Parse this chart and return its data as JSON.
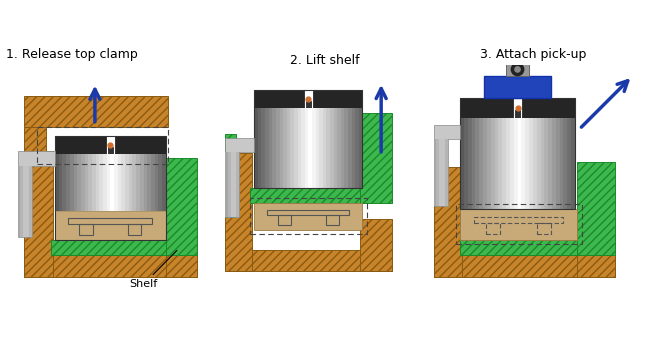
{
  "title1": "1. Release top clamp",
  "title2": "2. Lift shelf",
  "title3": "3. Attach pick-up",
  "shelf_label": "Shelf",
  "bg_color": "#ffffff",
  "wood_color": "#c8842a",
  "wood_edge": "#8a5a10",
  "green_color": "#3db84e",
  "green_edge": "#1a8a28",
  "device_top_color": "#222222",
  "device_bot_color": "#c8aa78",
  "arrow_color": "#1a3aaa",
  "pipe_color": "#c8c8c8",
  "pipe_edge": "#888888",
  "blue_magnet": "#2244bb",
  "orange_dot": "#d07030",
  "gray_pickup": "#999999",
  "shelf_t_color": "#666666"
}
